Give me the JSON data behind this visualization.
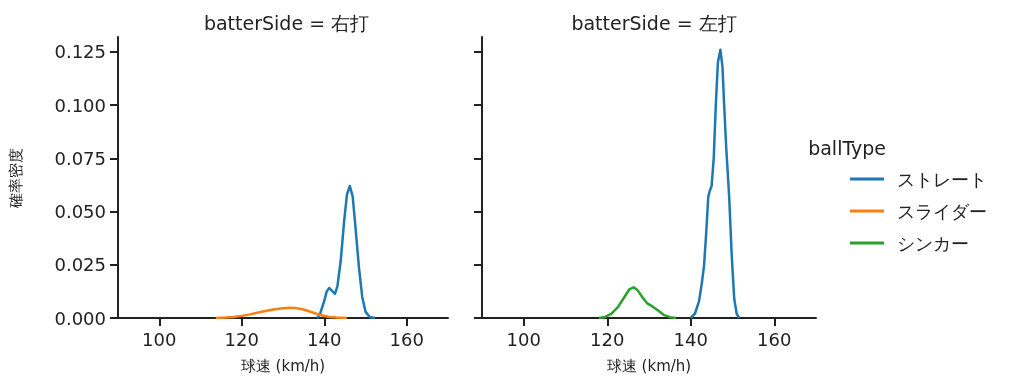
{
  "chart_data": [
    {
      "type": "line",
      "title": "batterSide = 右打",
      "xlabel": "球速 (km/h)",
      "ylabel": "確率密度",
      "xlim": [
        90,
        170
      ],
      "xticks": [
        100,
        120,
        140,
        160
      ],
      "ylim": [
        0,
        0.132
      ],
      "yticks": [
        {
          "value": 0,
          "label": "0.000"
        },
        {
          "value": 0.025,
          "label": "0.025"
        },
        {
          "value": 0.05,
          "label": "0.050"
        },
        {
          "value": 0.075,
          "label": "0.075"
        },
        {
          "value": 0.1,
          "label": "0.100"
        },
        {
          "value": 0.125,
          "label": "0.125"
        }
      ],
      "grid": false,
      "marker": "none",
      "legend": false,
      "series": [
        {
          "color": "#1f77b4",
          "x": [
            138.3,
            139,
            140,
            140.6,
            141.2,
            142,
            142.6,
            143.2,
            144,
            144.8,
            145.5,
            146.2,
            146.9,
            147.6,
            148.4,
            149.2,
            150,
            151,
            152.3
          ],
          "values": [
            0,
            0.002,
            0.008,
            0.0125,
            0.0141,
            0.0125,
            0.0113,
            0.015,
            0.027,
            0.045,
            0.058,
            0.062,
            0.057,
            0.042,
            0.024,
            0.01,
            0.003,
            0.0005,
            0
          ]
        },
        {
          "color": "#ff7f0e",
          "x": [
            113.7,
            116,
            118,
            120,
            122,
            124,
            126,
            128,
            130,
            131.5,
            133,
            135,
            137,
            139,
            141,
            143,
            145.5
          ],
          "values": [
            0,
            0.0002,
            0.0005,
            0.001,
            0.0017,
            0.0026,
            0.0034,
            0.0041,
            0.0046,
            0.0048,
            0.0047,
            0.004,
            0.0027,
            0.0014,
            0.0006,
            0.0002,
            0
          ]
        }
      ]
    },
    {
      "type": "line",
      "title": "batterSide = 左打",
      "xlabel": "球速 (km/h)",
      "xlim": [
        90,
        170
      ],
      "xticks": [
        100,
        120,
        140,
        160
      ],
      "ylim": [
        0,
        0.132
      ],
      "yticks": [
        0,
        0.025,
        0.05,
        0.075,
        0.1,
        0.125
      ],
      "tick_labels": "x",
      "grid": false,
      "marker": "none",
      "legend": "right",
      "legend_title": "ballType",
      "series": [
        {
          "name": "ストレート",
          "color": "#1f77b4",
          "x": [
            140,
            141,
            142,
            142.7,
            143.2,
            143.7,
            144.2,
            144.6,
            145,
            145.5,
            146,
            146.5,
            147.1,
            147.6,
            148,
            148.5,
            149.2,
            149.8,
            150.4,
            151,
            151.6
          ],
          "values": [
            0,
            0.002,
            0.008,
            0.017,
            0.025,
            0.04,
            0.057,
            0.06,
            0.062,
            0.075,
            0.1,
            0.12,
            0.126,
            0.118,
            0.1,
            0.08,
            0.057,
            0.03,
            0.0093,
            0.002,
            0
          ]
        },
        {
          "name": "スライダー",
          "color": "#ff7f0e"
        },
        {
          "name": "シンカー",
          "color": "#2ca02c",
          "x": [
            118,
            119.5,
            121,
            122.5,
            124,
            125.3,
            126.3,
            127.3,
            128.5,
            129.5,
            130.5,
            131.5,
            132.5,
            133.5,
            135,
            136.5
          ],
          "values": [
            0,
            0.0005,
            0.002,
            0.005,
            0.0095,
            0.0135,
            0.0144,
            0.013,
            0.0095,
            0.007,
            0.0058,
            0.0045,
            0.003,
            0.0015,
            0.0004,
            0
          ]
        }
      ]
    }
  ]
}
